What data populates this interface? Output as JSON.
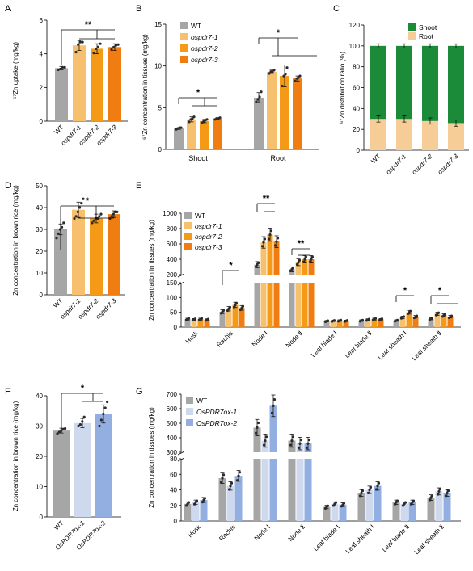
{
  "figure": {
    "colors": {
      "wt": "#a6a6a6",
      "m1": "#f6c06f",
      "m2": "#f59a17",
      "m3": "#f07d12",
      "ox1": "#cfd9ee",
      "ox2": "#93aee0",
      "shoot": "#1b8b3a",
      "root": "#f7cd97",
      "dot": "#2b2b2b"
    }
  },
  "chart_data": [
    {
      "panel": "A",
      "type": "bar",
      "ylabel": "⁶⁷Zn uptake (mg/kg)",
      "ylim": [
        0,
        6
      ],
      "yticks": [
        "0",
        "2",
        "4",
        "6"
      ],
      "categories": [
        "WT",
        "ospdr7-1",
        "ospdr7-2",
        "ospdr7-3"
      ],
      "values": [
        3.15,
        4.5,
        4.3,
        4.4
      ],
      "errors": [
        0.1,
        0.3,
        0.3,
        0.2
      ],
      "points": [
        [
          3.05,
          3.1,
          3.2,
          3.2
        ],
        [
          4.1,
          4.55,
          4.7,
          4.7
        ],
        [
          4.05,
          4.3,
          4.4,
          4.6
        ],
        [
          4.25,
          4.4,
          4.5,
          4.55
        ]
      ],
      "significance": [
        "**"
      ]
    },
    {
      "panel": "B",
      "type": "bar",
      "ylabel": "⁶⁷Zn concentration in tissues (mg/kg)",
      "ylim": [
        0,
        15
      ],
      "yticks": [
        "0",
        "5",
        "10",
        "15"
      ],
      "groups": [
        "Shoot",
        "Root"
      ],
      "series": [
        {
          "name": "WT",
          "values": [
            2.5,
            6.2
          ],
          "errors": [
            0.1,
            0.6
          ],
          "points": [
            [
              2.4,
              2.5,
              2.6,
              2.6
            ],
            [
              5.7,
              6.0,
              6.3,
              6.9
            ]
          ]
        },
        {
          "name": "ospdr7-1",
          "values": [
            3.6,
            9.3
          ],
          "errors": [
            0.3,
            0.2
          ],
          "points": [
            [
              3.3,
              3.6,
              3.7,
              3.9
            ],
            [
              9.1,
              9.3,
              9.3,
              9.5
            ]
          ]
        },
        {
          "name": "ospdr7-2",
          "values": [
            3.4,
            8.8
          ],
          "errors": [
            0.2,
            1.3
          ],
          "points": [
            [
              3.2,
              3.4,
              3.5,
              3.6
            ],
            [
              7.6,
              8.8,
              9.0,
              9.8
            ]
          ]
        },
        {
          "name": "ospdr7-3",
          "values": [
            3.7,
            8.5
          ],
          "errors": [
            0.1,
            0.3
          ],
          "points": [
            [
              3.6,
              3.7,
              3.7,
              3.8
            ],
            [
              8.2,
              8.5,
              8.6,
              8.8
            ]
          ]
        }
      ],
      "significance": [
        "*",
        "*"
      ]
    },
    {
      "panel": "C",
      "type": "bar",
      "ylabel": "⁶⁷Zn distribution ratio (%)",
      "ylim": [
        0,
        120
      ],
      "yticks": [
        "0",
        "20",
        "40",
        "60",
        "80",
        "100",
        "120"
      ],
      "categories": [
        "WT",
        "ospdr7-1",
        "ospdr7-2",
        "ospdr7-3"
      ],
      "series": [
        {
          "name": "Root",
          "values": [
            30,
            30,
            28,
            26
          ]
        },
        {
          "name": "Shoot",
          "values": [
            70,
            70,
            72,
            74
          ]
        }
      ]
    },
    {
      "panel": "D",
      "type": "bar",
      "ylabel": "Zn concentration in brown rice (mg/kg)",
      "ylim": [
        0,
        50
      ],
      "yticks": [
        "0",
        "10",
        "20",
        "30",
        "40",
        "50"
      ],
      "categories": [
        "WT",
        "ospdr7-1",
        "ospdr7-2",
        "ospdr7-3"
      ],
      "values": [
        30,
        39,
        35,
        37
      ],
      "errors": [
        2.5,
        3.5,
        2,
        1.5
      ],
      "points": [
        [
          26,
          28,
          30,
          31,
          33
        ],
        [
          35,
          36,
          38,
          40,
          42,
          44
        ],
        [
          33,
          34,
          35,
          35,
          36,
          37
        ],
        [
          35,
          36,
          37,
          38,
          38
        ]
      ],
      "significance": [
        "*"
      ]
    },
    {
      "panel": "E",
      "type": "bar",
      "ylabel": "Zn concentration in tissues (mg/kg)",
      "yticks_upper": [
        "200",
        "400",
        "600",
        "800",
        "1000"
      ],
      "yticks_lower": [
        "0",
        "50",
        "100",
        "150"
      ],
      "categories": [
        "Husk",
        "Rachis",
        "Node Ⅰ",
        "Node Ⅱ",
        "Leaf blade Ⅰ",
        "Leaf blade Ⅱ",
        "Leaf sheath Ⅰ",
        "Leaf sheath Ⅱ"
      ],
      "series": [
        {
          "name": "WT",
          "values": [
            27,
            52,
            330,
            270,
            20,
            22,
            22,
            28
          ]
        },
        {
          "name": "ospdr7-1",
          "values": [
            26,
            62,
            620,
            360,
            21,
            25,
            33,
            45
          ]
        },
        {
          "name": "ospdr7-2",
          "values": [
            27,
            75,
            720,
            400,
            22,
            27,
            50,
            40
          ]
        },
        {
          "name": "ospdr7-3",
          "values": [
            25,
            65,
            630,
            400,
            21,
            26,
            35,
            35
          ]
        }
      ],
      "significance": [
        "*",
        "**",
        "**",
        "*",
        "*"
      ]
    },
    {
      "panel": "F",
      "type": "bar",
      "ylabel": "Zn concentration in brown rice (mg/kg)",
      "ylim": [
        0,
        40
      ],
      "yticks": [
        "0",
        "10",
        "20",
        "30",
        "40"
      ],
      "categories": [
        "WT",
        "OsPDR7ox-1",
        "OsPDR7ox-2"
      ],
      "values": [
        28.5,
        31,
        34
      ],
      "errors": [
        0.8,
        1.5,
        3
      ],
      "points": [
        [
          27.5,
          28,
          28.5,
          29,
          29.2
        ],
        [
          30,
          30.5,
          31.5,
          33
        ],
        [
          30,
          32,
          34,
          36,
          38
        ]
      ],
      "significance": [
        "*"
      ]
    },
    {
      "panel": "G",
      "type": "bar",
      "ylabel": "Zn concentration in tissues (mg/kg)",
      "yticks_upper": [
        "300",
        "400",
        "500",
        "600",
        "700"
      ],
      "yticks_lower": [
        "0",
        "20",
        "40",
        "60",
        "80"
      ],
      "categories": [
        "Husk",
        "Rachis",
        "Node Ⅰ",
        "Node Ⅱ",
        "Leaf blade Ⅰ",
        "Leaf sheath Ⅰ",
        "Leaf blade Ⅱ",
        "Leaf sheath Ⅱ"
      ],
      "series": [
        {
          "name": "WT",
          "values": [
            22,
            55,
            470,
            380,
            18,
            36,
            24,
            30
          ]
        },
        {
          "name": "OsPDR7ox-1",
          "values": [
            24,
            45,
            380,
            360,
            22,
            40,
            22,
            38
          ]
        },
        {
          "name": "OsPDR7ox-2",
          "values": [
            27,
            58,
            620,
            360,
            21,
            45,
            24,
            36
          ]
        }
      ]
    }
  ]
}
